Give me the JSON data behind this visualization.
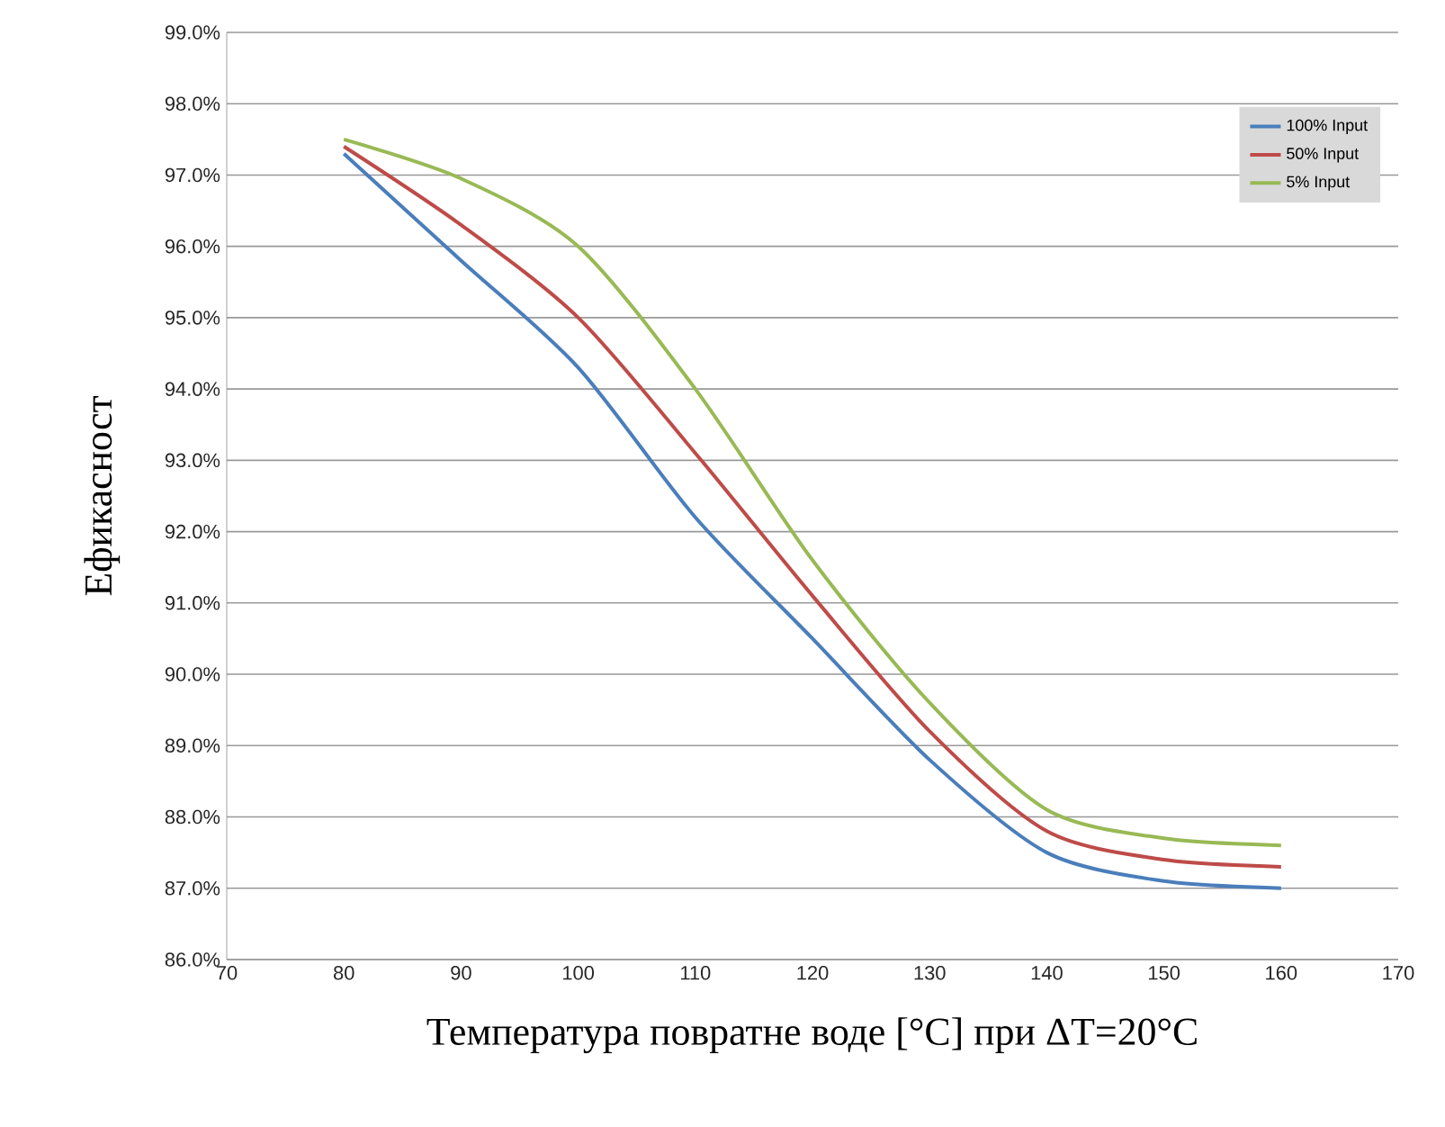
{
  "chart_data": {
    "type": "line",
    "xlabel": "Температура повратне воде [°C] при ΔT=20°C",
    "ylabel": "Ефикасност",
    "x": [
      80,
      90,
      100,
      110,
      120,
      130,
      140,
      150,
      160
    ],
    "series": [
      {
        "name": "100% Input",
        "color": "#4a7ebb",
        "values": [
          97.3,
          95.8,
          94.3,
          92.2,
          90.5,
          88.8,
          87.5,
          87.1,
          87.0
        ]
      },
      {
        "name": "50% Input",
        "color": "#be4b48",
        "values": [
          97.4,
          96.3,
          95.0,
          93.1,
          91.1,
          89.2,
          87.8,
          87.4,
          87.3
        ]
      },
      {
        "name": "5% Input",
        "color": "#98b954",
        "values": [
          97.5,
          96.95,
          96.0,
          94.0,
          91.6,
          89.6,
          88.1,
          87.7,
          87.6
        ]
      }
    ],
    "xlim": [
      70,
      170
    ],
    "xticks": [
      70,
      80,
      90,
      100,
      110,
      120,
      130,
      140,
      150,
      160,
      170
    ],
    "ylim": [
      86,
      99
    ],
    "yticks": [
      {
        "value": 86,
        "label": "86.0%"
      },
      {
        "value": 87,
        "label": "87.0%"
      },
      {
        "value": 88,
        "label": "88.0%"
      },
      {
        "value": 89,
        "label": "89.0%"
      },
      {
        "value": 90,
        "label": "90.0%"
      },
      {
        "value": 91,
        "label": "91.0%"
      },
      {
        "value": 92,
        "label": "92.0%"
      },
      {
        "value": 93,
        "label": "93.0%"
      },
      {
        "value": 94,
        "label": "94.0%"
      },
      {
        "value": 95,
        "label": "95.0%"
      },
      {
        "value": 96,
        "label": "96.0%"
      },
      {
        "value": 97,
        "label": "97.0%"
      },
      {
        "value": 98,
        "label": "98.0%"
      },
      {
        "value": 99,
        "label": "99.0%"
      }
    ],
    "grid": "y",
    "legend": "top right",
    "marker": "none",
    "line_style": "solid"
  }
}
